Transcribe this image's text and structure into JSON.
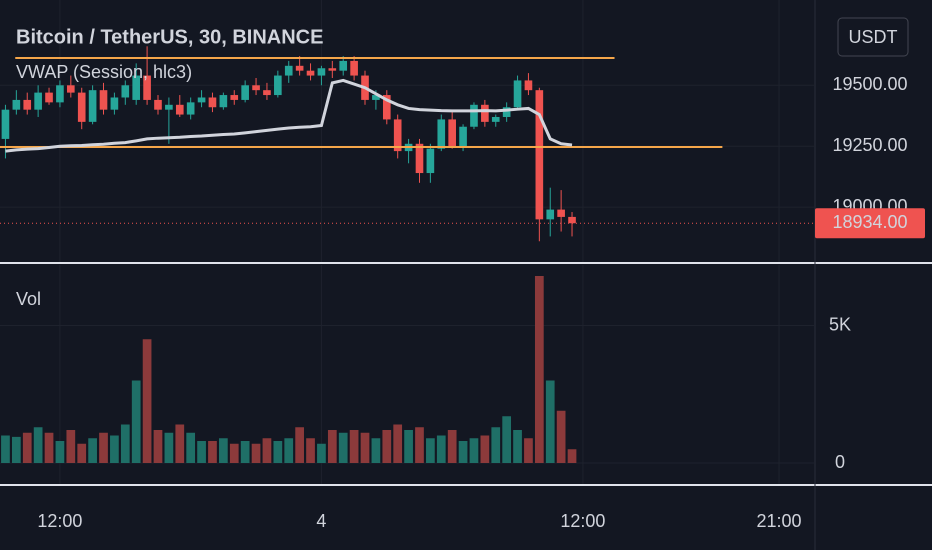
{
  "chart_data": [
    {
      "type": "candlestick",
      "title": "Bitcoin / TetherUS, 30, BINANCE",
      "currency": "USDT",
      "x": [
        -5,
        -4,
        -3,
        -2,
        -1,
        0,
        1,
        2,
        3,
        4,
        5,
        6,
        7,
        8,
        9,
        10,
        11,
        12,
        13,
        14,
        15,
        16,
        17,
        18,
        19,
        20,
        21,
        22,
        23,
        24,
        25,
        26,
        27,
        28,
        29,
        30,
        31,
        32,
        33,
        34,
        35,
        36,
        37,
        38,
        39,
        40,
        41,
        42,
        43,
        44,
        45,
        46,
        47
      ],
      "open": [
        19280,
        19400,
        19440,
        19400,
        19470,
        19430,
        19500,
        19470,
        19350,
        19480,
        19400,
        19450,
        19440,
        19540,
        19440,
        19400,
        19420,
        19380,
        19430,
        19450,
        19410,
        19460,
        19440,
        19500,
        19480,
        19460,
        19540,
        19580,
        19560,
        19540,
        19570,
        19560,
        19600,
        19540,
        19440,
        19460,
        19360,
        19230,
        19260,
        19140,
        19240,
        19360,
        19250,
        19330,
        19420,
        19350,
        19370,
        19410,
        19520,
        19480,
        18950,
        18990,
        18960
      ],
      "high": [
        19420,
        19480,
        19470,
        19500,
        19490,
        19520,
        19540,
        19490,
        19500,
        19510,
        19470,
        19520,
        19590,
        19660,
        19460,
        19450,
        19460,
        19450,
        19480,
        19470,
        19470,
        19480,
        19520,
        19530,
        19510,
        19560,
        19600,
        19620,
        19590,
        19580,
        19600,
        19620,
        19620,
        19560,
        19480,
        19480,
        19380,
        19280,
        19280,
        19260,
        19380,
        19390,
        19340,
        19430,
        19440,
        19380,
        19430,
        19540,
        19550,
        19490,
        19080,
        19070,
        18980
      ],
      "low": [
        19200,
        19380,
        19380,
        19370,
        19420,
        19410,
        19450,
        19320,
        19340,
        19380,
        19380,
        19420,
        19420,
        19420,
        19380,
        19260,
        19370,
        19360,
        19410,
        19390,
        19400,
        19420,
        19430,
        19460,
        19440,
        19450,
        19510,
        19540,
        19520,
        19500,
        19530,
        19540,
        19520,
        19420,
        19400,
        19340,
        19200,
        19180,
        19100,
        19100,
        19230,
        19240,
        19230,
        19320,
        19330,
        19330,
        19350,
        19400,
        19460,
        18860,
        18880,
        18900,
        18880
      ],
      "close": [
        19400,
        19440,
        19400,
        19470,
        19430,
        19500,
        19470,
        19350,
        19480,
        19400,
        19450,
        19500,
        19540,
        19440,
        19400,
        19420,
        19380,
        19430,
        19450,
        19410,
        19460,
        19440,
        19500,
        19480,
        19460,
        19540,
        19580,
        19560,
        19540,
        19570,
        19560,
        19600,
        19540,
        19440,
        19460,
        19360,
        19230,
        19260,
        19140,
        19240,
        19360,
        19250,
        19330,
        19420,
        19350,
        19370,
        19410,
        19520,
        19480,
        18950,
        18990,
        18960,
        18934
      ],
      "up_color": "#26a69a",
      "down_color": "#ef5350",
      "series": [
        {
          "name": "VWAP (Session, hlc3)",
          "color": "#d1d4dc",
          "values": [
            19230,
            19235,
            19238,
            19240,
            19245,
            19250,
            19252,
            19253,
            19256,
            19258,
            19262,
            19265,
            19272,
            19280,
            19283,
            19285,
            19287,
            19290,
            19292,
            19295,
            19298,
            19300,
            19305,
            19310,
            19315,
            19320,
            19325,
            19328,
            19330,
            19335,
            19510,
            19520,
            19505,
            19490,
            19465,
            19440,
            19420,
            19405,
            19400,
            19398,
            19396,
            19395,
            19395,
            19395,
            19396,
            19395,
            19398,
            19402,
            19405,
            19380,
            19280,
            19260,
            19255
          ]
        }
      ],
      "levels": [
        {
          "value": 19612,
          "color": "#f5a64a",
          "x": [
            -4.1,
            50.9
          ]
        },
        {
          "value": 19247,
          "color": "#f5a64a",
          "x": [
            -5.5,
            60.8
          ]
        }
      ],
      "last_price": {
        "value": 18934,
        "label": "18934.00"
      },
      "ylim": [
        18775,
        19850
      ],
      "yticks": [
        {
          "value": 19000,
          "label": "19000.00"
        },
        {
          "value": 19250,
          "label": "19250.00"
        },
        {
          "value": 19500,
          "label": "19500.00"
        }
      ],
      "grid": true
    },
    {
      "type": "bar",
      "title": "Vol",
      "x": [
        -5,
        -4,
        -3,
        -2,
        -1,
        0,
        1,
        2,
        3,
        4,
        5,
        6,
        7,
        8,
        9,
        10,
        11,
        12,
        13,
        14,
        15,
        16,
        17,
        18,
        19,
        20,
        21,
        22,
        23,
        24,
        25,
        26,
        27,
        28,
        29,
        30,
        31,
        32,
        33,
        34,
        35,
        36,
        37,
        38,
        39,
        40,
        41,
        42,
        43,
        44,
        45,
        46,
        47
      ],
      "values": [
        1000,
        950,
        1100,
        1300,
        1100,
        800,
        1200,
        700,
        900,
        1100,
        1000,
        1400,
        3000,
        4500,
        1200,
        1100,
        1400,
        1100,
        800,
        800,
        900,
        700,
        800,
        700,
        900,
        800,
        900,
        1300,
        900,
        700,
        1200,
        1100,
        1200,
        1100,
        900,
        1200,
        1400,
        1200,
        1300,
        900,
        1000,
        1200,
        800,
        900,
        1000,
        1300,
        1700,
        1200,
        900,
        6800,
        3000,
        1900,
        500
      ],
      "up_color": "#1f6f67",
      "down_color": "#8c3a3b",
      "xlim": [
        -5.5,
        69.3
      ],
      "xticks": [
        {
          "value": 0,
          "label": "12:00"
        },
        {
          "value": 24,
          "label": "4"
        },
        {
          "value": 48,
          "label": "12:00"
        },
        {
          "value": 66,
          "label": "21:00"
        }
      ],
      "ylim": [
        -800,
        7200
      ],
      "yticks": [
        0,
        {
          "value": 5000,
          "label": "5K"
        }
      ],
      "grid": true
    }
  ]
}
